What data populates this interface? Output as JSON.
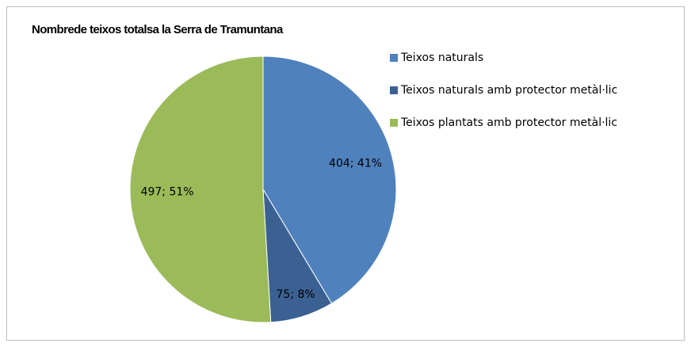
{
  "chart_data": {
    "type": "pie",
    "title": "Nombrede teixos totalsa la Serra de Tramuntana",
    "categories": [
      "Teixos naturals",
      "Teixos naturals amb protector metàl·lic",
      "Teixos plantats amb protector metàl·lic"
    ],
    "values": [
      404,
      75,
      497
    ],
    "value_labels": [
      "404; 41%",
      "75; 8%",
      "497; 51%"
    ],
    "colors": [
      "#4f81bd",
      "#3b6193",
      "#9bbb59"
    ],
    "legend": "right"
  }
}
